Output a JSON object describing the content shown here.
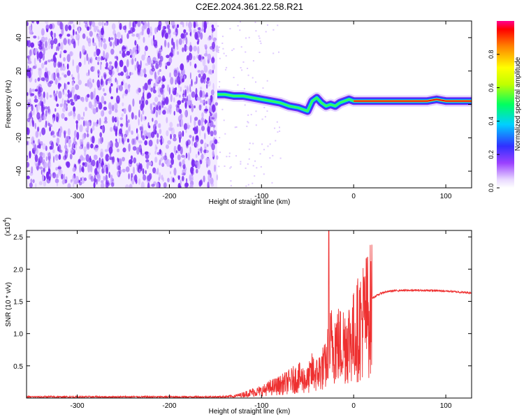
{
  "title": "C2E2.2024.361.22.58.R21",
  "colors": {
    "noise": "#7a2cf2",
    "noise_light": "#c9a6ff",
    "snr_line": "#ee3030",
    "frame": "#000000"
  },
  "chart_data": [
    {
      "type": "heatmap",
      "xlabel": "Height of straight line (km)",
      "ylabel": "Frequency (Hz)",
      "xlim": [
        -355,
        128
      ],
      "ylim": [
        -50,
        50
      ],
      "xticks": [
        -300,
        -200,
        -100,
        0,
        100
      ],
      "yticks": [
        -40,
        -20,
        0,
        20,
        40
      ],
      "noise_region_x": [
        -355,
        -148
      ],
      "signal_track": {
        "x": [
          -148,
          -140,
          -130,
          -120,
          -110,
          -100,
          -90,
          -80,
          -70,
          -60,
          -50,
          -45,
          -40,
          -35,
          -30,
          -25,
          -20,
          -15,
          -10,
          -5,
          0,
          10,
          20,
          40,
          60,
          80,
          90,
          100,
          110,
          120,
          128
        ],
        "y": [
          6,
          6,
          5,
          5,
          4,
          3,
          2,
          1,
          -1,
          -2,
          -4,
          2,
          4,
          1,
          -1,
          0,
          -1,
          1,
          2,
          3,
          2,
          2,
          2,
          2,
          2,
          2,
          3,
          2,
          2,
          2,
          2
        ]
      },
      "colorbar": {
        "label": "Normalized spectral amplitude",
        "ticks": [
          "0.0",
          "0.2",
          "0.4",
          "0.6",
          "0.8"
        ],
        "range": [
          0,
          1
        ]
      },
      "grid": false
    },
    {
      "type": "line",
      "xlabel": "Height of straight line (km)",
      "ylabel": "SNR (10 * v/v)",
      "scale_label": "(x10",
      "scale_exp": "4",
      "scale_close": ")",
      "xlim": [
        -355,
        128
      ],
      "ylim": [
        0,
        2.6
      ],
      "xticks": [
        -300,
        -200,
        -100,
        0,
        100
      ],
      "yticks": [
        0.5,
        1.0,
        1.5,
        2.0,
        2.5
      ],
      "ytick_labels": [
        "0.5",
        "1.0",
        "1.5",
        "2.0",
        "2.5"
      ],
      "series": [
        {
          "x": [
            -355,
            -150,
            -130,
            -120,
            -110,
            -100,
            -90,
            -80,
            -70,
            -60,
            -50,
            -45,
            -40,
            -35,
            -30,
            -27,
            -25,
            -20,
            -15,
            -10,
            -5,
            0,
            5,
            10,
            15,
            20,
            30,
            40,
            50,
            60,
            80,
            100,
            110,
            128
          ],
          "y": [
            0.02,
            0.02,
            0.03,
            0.06,
            0.1,
            0.12,
            0.18,
            0.22,
            0.28,
            0.35,
            0.3,
            0.45,
            0.4,
            0.5,
            0.55,
            0.8,
            0.9,
            0.95,
            0.9,
            0.95,
            1.0,
            1.05,
            1.2,
            1.35,
            1.45,
            1.55,
            1.63,
            1.66,
            1.67,
            1.67,
            1.67,
            1.66,
            1.65,
            1.63
          ],
          "spike": {
            "x": -27,
            "y": 2.6
          }
        }
      ],
      "grid": false
    }
  ]
}
